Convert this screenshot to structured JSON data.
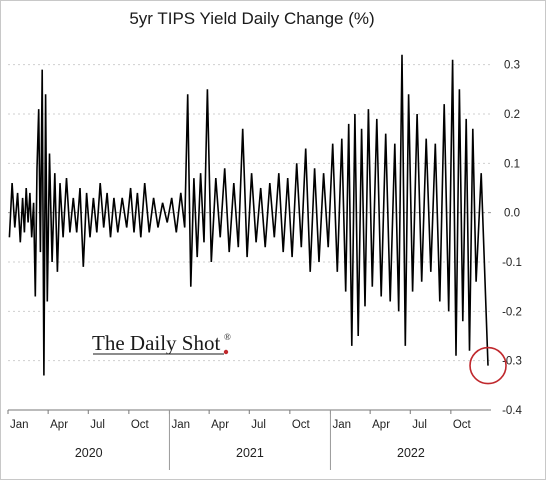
{
  "chart_data": {
    "type": "line",
    "title": "5yr TIPS Yield Daily Change (%)",
    "xlabel": "",
    "ylabel": "",
    "ylim": [
      -0.4,
      0.35
    ],
    "yticks": [
      0.3,
      0.2,
      0.1,
      0.0,
      -0.1,
      -0.2,
      -0.3,
      -0.4
    ],
    "ytick_labels": [
      "0.3",
      "0.2",
      "0.1",
      "0.0",
      "-0.1",
      "-0.2",
      "-0.3",
      "-0.4"
    ],
    "y_axis_side": "right",
    "x_tick_labels": [
      "Jan",
      "Apr",
      "Jul",
      "Oct",
      "Jan",
      "Apr",
      "Jul",
      "Oct",
      "Jan",
      "Apr",
      "Jul",
      "Oct"
    ],
    "x_years": [
      "2020",
      "2021",
      "2022"
    ],
    "grid": true,
    "annotation": {
      "type": "circle",
      "label": "",
      "date": "2022-12",
      "value": -0.31
    },
    "series": [
      {
        "points": [
          [
            "2020-01",
            -0.05
          ],
          [
            "2020-01",
            0.06
          ],
          [
            "2020-01",
            -0.03
          ],
          [
            "2020-01",
            0.04
          ],
          [
            "2020-01",
            -0.06
          ],
          [
            "2020-02",
            0.03
          ],
          [
            "2020-02",
            -0.04
          ],
          [
            "2020-02",
            0.05
          ],
          [
            "2020-02",
            -0.02
          ],
          [
            "2020-02",
            0.04
          ],
          [
            "2020-02",
            -0.05
          ],
          [
            "2020-02",
            0.02
          ],
          [
            "2020-03",
            -0.17
          ],
          [
            "2020-03",
            0.09
          ],
          [
            "2020-03",
            0.21
          ],
          [
            "2020-03",
            -0.08
          ],
          [
            "2020-03",
            0.29
          ],
          [
            "2020-03",
            -0.33
          ],
          [
            "2020-03",
            0.24
          ],
          [
            "2020-03",
            -0.18
          ],
          [
            "2020-04",
            0.12
          ],
          [
            "2020-04",
            -0.1
          ],
          [
            "2020-04",
            0.08
          ],
          [
            "2020-04",
            -0.12
          ],
          [
            "2020-04",
            0.06
          ],
          [
            "2020-05",
            -0.05
          ],
          [
            "2020-05",
            0.07
          ],
          [
            "2020-05",
            -0.04
          ],
          [
            "2020-05",
            0.03
          ],
          [
            "2020-06",
            -0.04
          ],
          [
            "2020-06",
            0.05
          ],
          [
            "2020-06",
            -0.11
          ],
          [
            "2020-06",
            0.04
          ],
          [
            "2020-07",
            -0.05
          ],
          [
            "2020-07",
            0.03
          ],
          [
            "2020-07",
            -0.04
          ],
          [
            "2020-07",
            0.06
          ],
          [
            "2020-08",
            -0.03
          ],
          [
            "2020-08",
            0.04
          ],
          [
            "2020-08",
            -0.05
          ],
          [
            "2020-08",
            0.03
          ],
          [
            "2020-09",
            -0.04
          ],
          [
            "2020-09",
            0.03
          ],
          [
            "2020-09",
            -0.03
          ],
          [
            "2020-10",
            0.05
          ],
          [
            "2020-10",
            -0.04
          ],
          [
            "2020-10",
            0.04
          ],
          [
            "2020-10",
            -0.05
          ],
          [
            "2020-11",
            0.06
          ],
          [
            "2020-11",
            -0.04
          ],
          [
            "2020-11",
            0.03
          ],
          [
            "2020-12",
            -0.03
          ],
          [
            "2020-12",
            0.02
          ],
          [
            "2020-12",
            -0.02
          ],
          [
            "2021-01",
            0.03
          ],
          [
            "2021-01",
            -0.04
          ],
          [
            "2021-01",
            0.04
          ],
          [
            "2021-02",
            -0.03
          ],
          [
            "2021-02",
            0.24
          ],
          [
            "2021-02",
            -0.15
          ],
          [
            "2021-02",
            0.07
          ],
          [
            "2021-03",
            -0.09
          ],
          [
            "2021-03",
            0.08
          ],
          [
            "2021-03",
            -0.06
          ],
          [
            "2021-03",
            0.25
          ],
          [
            "2021-04",
            -0.1
          ],
          [
            "2021-04",
            0.07
          ],
          [
            "2021-04",
            -0.05
          ],
          [
            "2021-05",
            0.09
          ],
          [
            "2021-05",
            -0.08
          ],
          [
            "2021-05",
            0.06
          ],
          [
            "2021-06",
            -0.07
          ],
          [
            "2021-06",
            0.17
          ],
          [
            "2021-06",
            -0.09
          ],
          [
            "2021-07",
            0.08
          ],
          [
            "2021-07",
            -0.06
          ],
          [
            "2021-07",
            0.05
          ],
          [
            "2021-08",
            -0.07
          ],
          [
            "2021-08",
            0.06
          ],
          [
            "2021-08",
            -0.05
          ],
          [
            "2021-09",
            0.08
          ],
          [
            "2021-09",
            -0.08
          ],
          [
            "2021-09",
            0.07
          ],
          [
            "2021-10",
            -0.09
          ],
          [
            "2021-10",
            0.1
          ],
          [
            "2021-10",
            -0.07
          ],
          [
            "2021-11",
            0.13
          ],
          [
            "2021-11",
            -0.12
          ],
          [
            "2021-11",
            0.09
          ],
          [
            "2021-12",
            -0.1
          ],
          [
            "2021-12",
            0.08
          ],
          [
            "2021-12",
            -0.07
          ],
          [
            "2022-01",
            0.14
          ],
          [
            "2022-01",
            -0.12
          ],
          [
            "2022-01",
            0.15
          ],
          [
            "2022-02",
            -0.16
          ],
          [
            "2022-02",
            0.18
          ],
          [
            "2022-02",
            -0.27
          ],
          [
            "2022-02",
            0.2
          ],
          [
            "2022-03",
            -0.25
          ],
          [
            "2022-03",
            0.17
          ],
          [
            "2022-03",
            -0.19
          ],
          [
            "2022-03",
            0.21
          ],
          [
            "2022-04",
            -0.15
          ],
          [
            "2022-04",
            0.19
          ],
          [
            "2022-04",
            -0.17
          ],
          [
            "2022-05",
            0.16
          ],
          [
            "2022-05",
            -0.18
          ],
          [
            "2022-05",
            0.14
          ],
          [
            "2022-06",
            -0.2
          ],
          [
            "2022-06",
            0.32
          ],
          [
            "2022-06",
            -0.27
          ],
          [
            "2022-06",
            0.24
          ],
          [
            "2022-07",
            -0.16
          ],
          [
            "2022-07",
            0.2
          ],
          [
            "2022-07",
            -0.14
          ],
          [
            "2022-08",
            0.15
          ],
          [
            "2022-08",
            -0.12
          ],
          [
            "2022-08",
            0.14
          ],
          [
            "2022-09",
            -0.18
          ],
          [
            "2022-09",
            0.22
          ],
          [
            "2022-09",
            -0.2
          ],
          [
            "2022-10",
            0.31
          ],
          [
            "2022-10",
            -0.29
          ],
          [
            "2022-10",
            0.25
          ],
          [
            "2022-10",
            -0.22
          ],
          [
            "2022-11",
            0.19
          ],
          [
            "2022-11",
            -0.28
          ],
          [
            "2022-11",
            0.17
          ],
          [
            "2022-11",
            -0.14
          ],
          [
            "2022-12",
            0.08
          ],
          [
            "2022-12",
            -0.31
          ]
        ]
      }
    ]
  },
  "logo": {
    "text": "The Daily Shot",
    "mark": "®"
  }
}
